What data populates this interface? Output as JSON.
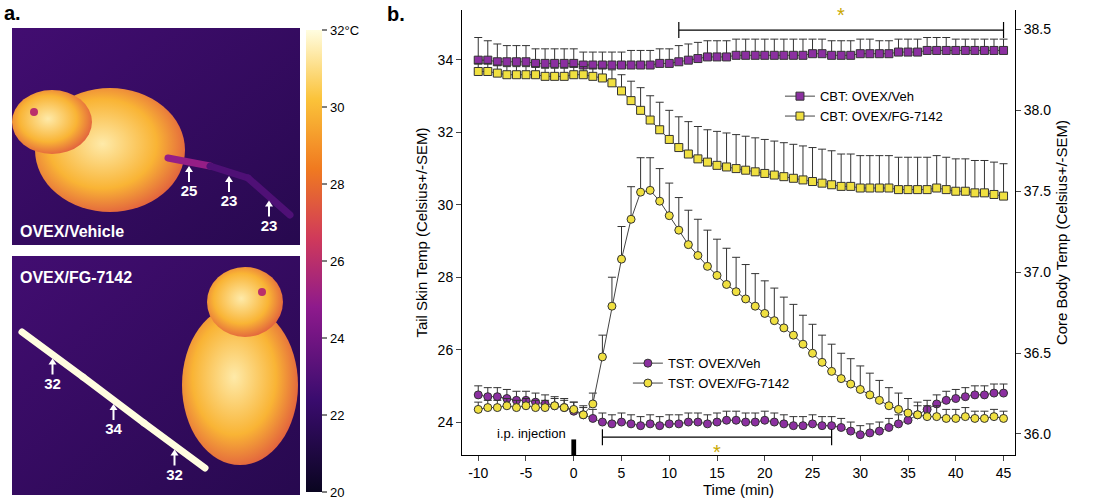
{
  "panel_a": {
    "label": "a.",
    "images": [
      {
        "label": "OVEX/Vehicle",
        "spot_temps": [
          25,
          23,
          23
        ]
      },
      {
        "label": "OVEX/FG-7142",
        "spot_temps": [
          32,
          34,
          32
        ]
      }
    ],
    "colorbar": {
      "range": [
        20,
        32
      ],
      "ticks": [
        {
          "value": 32,
          "label": "32°C"
        },
        30,
        28,
        26,
        24,
        22,
        20
      ]
    }
  },
  "chart_data": {
    "panel_label": "b.",
    "type": "line",
    "x_label": "Time (min)",
    "y_label": "Tail Skin Temp (Celsius+/-SEM)",
    "y2_label": "Core Body Temp (Celsius+/-SEM)",
    "x": [
      -10,
      -9,
      -8,
      -7,
      -6,
      -5,
      -4,
      -3,
      -2,
      -1,
      0,
      1,
      2,
      3,
      4,
      5,
      6,
      7,
      8,
      9,
      10,
      11,
      12,
      13,
      14,
      15,
      16,
      17,
      18,
      19,
      20,
      21,
      22,
      23,
      24,
      25,
      26,
      27,
      28,
      29,
      30,
      31,
      32,
      33,
      34,
      35,
      36,
      37,
      38,
      39,
      40,
      41,
      42,
      43,
      44,
      45
    ],
    "xlim": [
      -11.7,
      46.2
    ],
    "xticks": [
      -10,
      -5,
      0,
      5,
      10,
      15,
      20,
      25,
      30,
      35,
      40,
      45
    ],
    "ylim": [
      23.09,
      35.38
    ],
    "yticks": [
      24,
      26,
      28,
      30,
      32,
      34
    ],
    "y2lim": [
      35.87,
      38.62
    ],
    "y2ticks": [
      {
        "value": 36,
        "label": "36.0"
      },
      36.5,
      {
        "value": 37,
        "label": "37.0"
      },
      37.5,
      {
        "value": 38,
        "label": "38.0"
      },
      38.5
    ],
    "grid": false,
    "legend": "inside",
    "series": [
      {
        "name": "CBT: OVEX/Veh",
        "color": "#8b2fa0",
        "marker": "square",
        "axis": "y2",
        "values": [
          38.31,
          38.31,
          38.3,
          38.3,
          38.3,
          38.3,
          38.29,
          38.29,
          38.29,
          38.29,
          38.29,
          38.28,
          38.28,
          38.28,
          38.28,
          38.28,
          38.28,
          38.28,
          38.28,
          38.29,
          38.29,
          38.3,
          38.31,
          38.32,
          38.33,
          38.33,
          38.33,
          38.34,
          38.34,
          38.34,
          38.34,
          38.34,
          38.34,
          38.34,
          38.34,
          38.35,
          38.35,
          38.34,
          38.34,
          38.34,
          38.35,
          38.35,
          38.35,
          38.35,
          38.36,
          38.36,
          38.36,
          38.37,
          38.37,
          38.37,
          38.37,
          38.37,
          38.37,
          38.37,
          38.37,
          38.37
        ],
        "sem": [
          0.14,
          0.12,
          0.11,
          0.1,
          0.1,
          0.1,
          0.09,
          0.09,
          0.09,
          0.09,
          0.09,
          0.08,
          0.08,
          0.08,
          0.08,
          0.08,
          0.09,
          0.09,
          0.09,
          0.09,
          0.09,
          0.1,
          0.1,
          0.1,
          0.1,
          0.1,
          0.1,
          0.1,
          0.1,
          0.1,
          0.1,
          0.1,
          0.1,
          0.1,
          0.1,
          0.09,
          0.09,
          0.09,
          0.09,
          0.09,
          0.09,
          0.09,
          0.08,
          0.08,
          0.08,
          0.08,
          0.08,
          0.08,
          0.08,
          0.08,
          0.07,
          0.07,
          0.07,
          0.07,
          0.07,
          0.07
        ]
      },
      {
        "name": "CBT: OVEX/FG-7142",
        "color": "#f0e040",
        "marker": "square",
        "axis": "y2",
        "values": [
          38.24,
          38.24,
          38.23,
          38.22,
          38.22,
          38.22,
          38.22,
          38.21,
          38.21,
          38.21,
          38.22,
          38.22,
          38.21,
          38.2,
          38.17,
          38.12,
          38.06,
          38.0,
          37.94,
          37.88,
          37.82,
          37.77,
          37.73,
          37.7,
          37.68,
          37.66,
          37.65,
          37.64,
          37.63,
          37.62,
          37.61,
          37.6,
          37.59,
          37.58,
          37.57,
          37.56,
          37.55,
          37.54,
          37.53,
          37.53,
          37.52,
          37.52,
          37.52,
          37.52,
          37.51,
          37.51,
          37.51,
          37.51,
          37.52,
          37.51,
          37.5,
          37.5,
          37.49,
          37.49,
          37.48,
          37.47
        ],
        "sem": [
          0.05,
          0.05,
          0.05,
          0.05,
          0.05,
          0.05,
          0.05,
          0.05,
          0.05,
          0.05,
          0.05,
          0.05,
          0.05,
          0.06,
          0.08,
          0.1,
          0.12,
          0.14,
          0.15,
          0.17,
          0.18,
          0.19,
          0.2,
          0.2,
          0.2,
          0.21,
          0.21,
          0.21,
          0.21,
          0.21,
          0.21,
          0.21,
          0.21,
          0.21,
          0.21,
          0.21,
          0.21,
          0.21,
          0.2,
          0.2,
          0.2,
          0.2,
          0.2,
          0.2,
          0.2,
          0.2,
          0.2,
          0.2,
          0.2,
          0.2,
          0.2,
          0.2,
          0.2,
          0.2,
          0.2,
          0.2
        ]
      },
      {
        "name": "TST: OVEX/Veh",
        "color": "#8b2fa0",
        "marker": "circle",
        "axis": "y",
        "values": [
          24.75,
          24.7,
          24.7,
          24.65,
          24.6,
          24.6,
          24.55,
          24.5,
          24.45,
          24.4,
          24.3,
          24.2,
          24.1,
          24.0,
          23.95,
          24.0,
          23.95,
          23.9,
          23.95,
          23.9,
          23.95,
          23.95,
          24.0,
          24.0,
          23.95,
          24.0,
          24.05,
          24.05,
          24.0,
          24.0,
          24.05,
          24.0,
          23.95,
          23.9,
          23.9,
          23.95,
          23.9,
          23.9,
          23.85,
          23.75,
          23.65,
          23.7,
          23.75,
          23.85,
          23.95,
          24.05,
          24.2,
          24.35,
          24.5,
          24.6,
          24.65,
          24.7,
          24.75,
          24.75,
          24.8,
          24.8
        ],
        "sem": [
          0.25,
          0.25,
          0.25,
          0.25,
          0.25,
          0.25,
          0.25,
          0.25,
          0.25,
          0.25,
          0.25,
          0.25,
          0.25,
          0.25,
          0.25,
          0.25,
          0.25,
          0.25,
          0.25,
          0.25,
          0.25,
          0.25,
          0.25,
          0.25,
          0.25,
          0.25,
          0.25,
          0.25,
          0.25,
          0.25,
          0.25,
          0.25,
          0.25,
          0.25,
          0.25,
          0.25,
          0.25,
          0.25,
          0.25,
          0.25,
          0.25,
          0.25,
          0.25,
          0.25,
          0.25,
          0.25,
          0.25,
          0.25,
          0.25,
          0.25,
          0.25,
          0.25,
          0.25,
          0.25,
          0.25,
          0.25
        ]
      },
      {
        "name": "TST: OVEX/FG-7142",
        "color": "#f0e040",
        "marker": "circle",
        "axis": "y",
        "values": [
          24.35,
          24.4,
          24.4,
          24.45,
          24.4,
          24.45,
          24.4,
          24.4,
          24.45,
          24.4,
          24.35,
          24.2,
          24.5,
          25.8,
          27.2,
          28.5,
          29.6,
          30.35,
          30.4,
          30.1,
          29.7,
          29.3,
          28.9,
          28.6,
          28.3,
          28.05,
          27.8,
          27.6,
          27.4,
          27.2,
          27.0,
          26.8,
          26.6,
          26.4,
          26.15,
          25.9,
          25.65,
          25.4,
          25.2,
          25.05,
          24.9,
          24.75,
          24.6,
          24.45,
          24.35,
          24.25,
          24.2,
          24.15,
          24.15,
          24.1,
          24.1,
          24.15,
          24.1,
          24.1,
          24.15,
          24.1
        ],
        "sem": [
          0.2,
          0.2,
          0.2,
          0.2,
          0.2,
          0.2,
          0.2,
          0.2,
          0.2,
          0.2,
          0.2,
          0.2,
          0.3,
          0.6,
          0.8,
          0.9,
          0.9,
          0.95,
          0.9,
          0.9,
          0.9,
          0.9,
          0.95,
          1.0,
          1.0,
          1.0,
          1.0,
          0.95,
          0.95,
          0.9,
          0.9,
          0.9,
          0.85,
          0.85,
          0.8,
          0.8,
          0.75,
          0.75,
          0.7,
          0.7,
          0.65,
          0.6,
          0.55,
          0.5,
          0.45,
          0.4,
          0.35,
          0.3,
          0.3,
          0.25,
          0.25,
          0.25,
          0.2,
          0.2,
          0.2,
          0.2
        ]
      }
    ],
    "annotations": [
      {
        "text": "i.p. injection",
        "x": 0
      },
      {
        "text": "*",
        "x0": 3,
        "x1": 27,
        "axis": "y"
      },
      {
        "text": "*",
        "x0": 11,
        "x1": 45,
        "axis": "y2"
      }
    ]
  }
}
